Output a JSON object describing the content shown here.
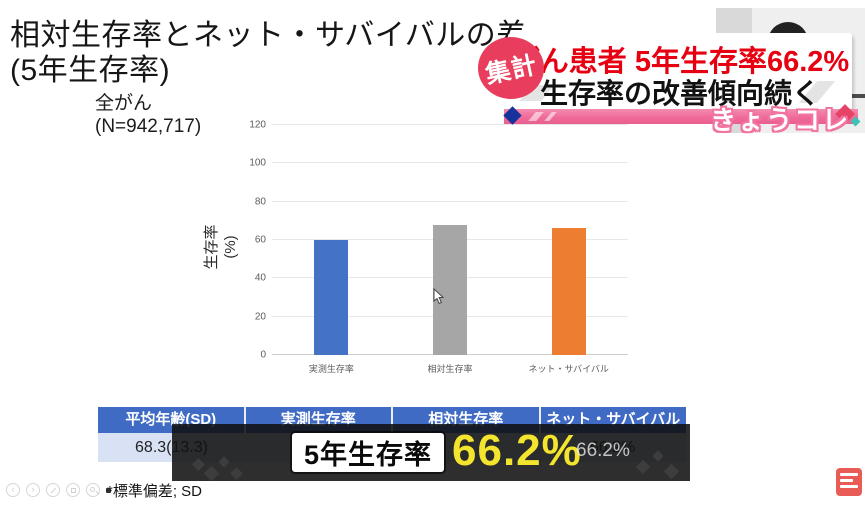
{
  "slide": {
    "title_line1": "相対生存率とネット・サバイバルの差",
    "title_line2": "(5年生存率)",
    "subtitle_line1": "全がん",
    "subtitle_line2": "(N=942,717)",
    "footnote": "*標準偏差; SD"
  },
  "chart_data": {
    "type": "bar",
    "title": "全がん (N=942,717) 5年生存率",
    "ylabel_line1": "生存率",
    "ylabel_line2": "(%)",
    "categories": [
      "実測生存率",
      "相対生存率",
      "ネット・サバイバル"
    ],
    "values": [
      60,
      68,
      66.2
    ],
    "colors": [
      "#4472c4",
      "#a6a6a6",
      "#ed7d31"
    ],
    "ylim": [
      0,
      120
    ],
    "yticks": [
      0,
      20,
      40,
      60,
      80,
      100,
      120
    ],
    "grid": true,
    "legend": false
  },
  "headline": {
    "badge": "集計",
    "line1": "がん患者 5年生存率66.2%",
    "line1_color": "#e60012",
    "line2": "生存率の改善傾向続く",
    "program": "きょうコレ"
  },
  "table": {
    "headers": [
      "平均年齢(SD)",
      "実測生存率",
      "相対生存率",
      "ネット・サバイバル"
    ],
    "rows": [
      [
        "68.3(13.3)",
        "",
        "",
        "66.2%"
      ]
    ]
  },
  "banner": {
    "label": "5年生存率",
    "value": "66.2%",
    "value_color": "#f3e52e",
    "ghost_value": "66.2%"
  },
  "icons": {
    "controls": [
      "prev-slide-icon",
      "next-slide-icon",
      "pen-icon",
      "slideshow-icon",
      "magnifier-icon"
    ],
    "logo": "news-logo"
  }
}
